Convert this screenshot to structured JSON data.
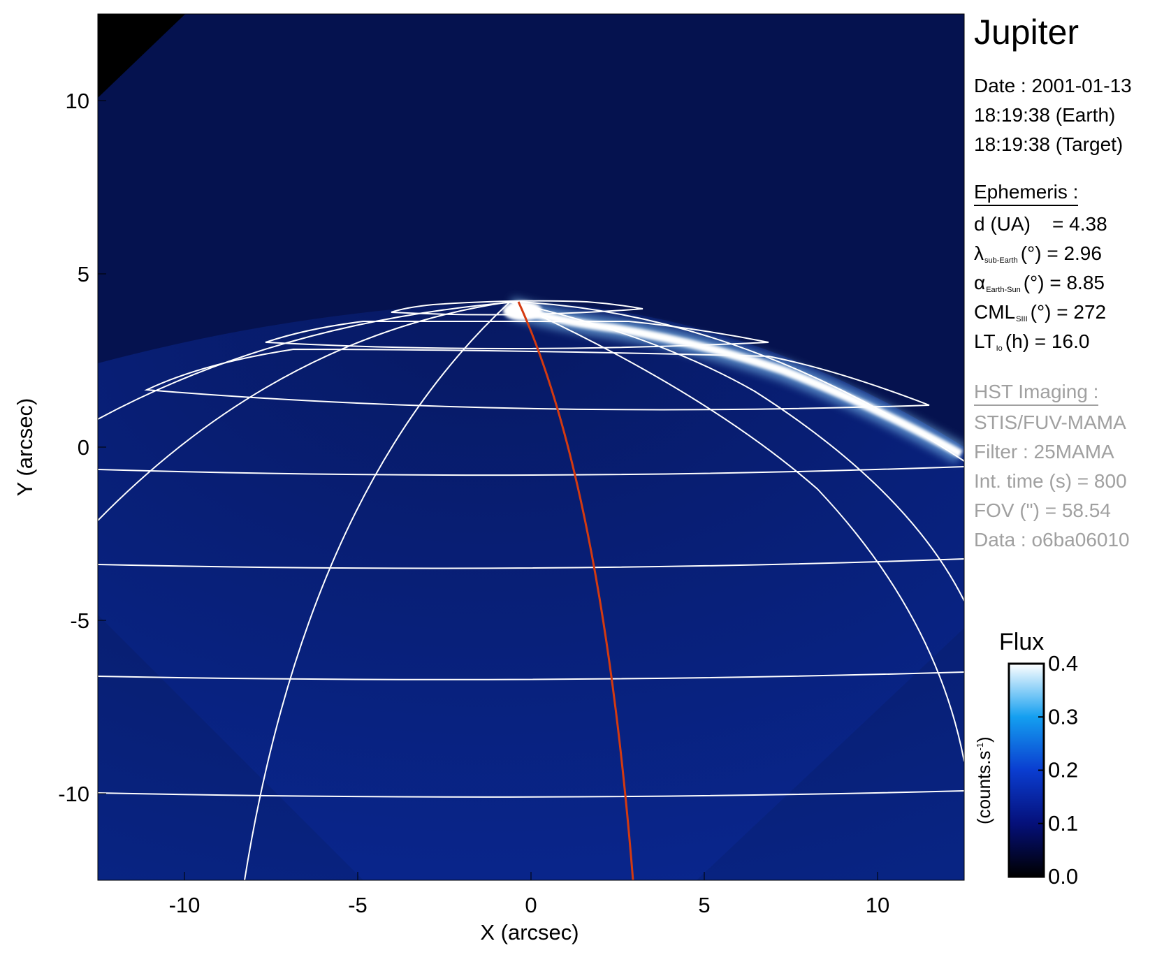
{
  "chart_data": {
    "type": "heatmap",
    "xlabel": "X (arcsec)",
    "ylabel": "Y (arcsec)",
    "xlim": [
      -12.5,
      12.5
    ],
    "ylim": [
      -12.5,
      12.5
    ],
    "x_ticks": [
      "-10",
      "-5",
      "0",
      "5",
      "10"
    ],
    "y_ticks": [
      "10",
      "5",
      "0",
      "-5",
      "-10"
    ],
    "x_tick_values": [
      -10,
      -5,
      0,
      5,
      10
    ],
    "y_tick_values": [
      10,
      5,
      0,
      -5,
      -10
    ],
    "colorbar": {
      "title": "Flux",
      "unit_main": "(counts.s",
      "unit_sup": "-1",
      "unit_end": ")",
      "range": [
        0.0,
        0.4
      ],
      "ticks": [
        "0.0",
        "0.1",
        "0.2",
        "0.3",
        "0.4"
      ],
      "tick_values": [
        0.0,
        0.1,
        0.2,
        0.3,
        0.4
      ],
      "colors": [
        "#000000",
        "#05107a",
        "#0a3dd0",
        "#149ff0",
        "#ffffff"
      ]
    },
    "colors": {
      "background": "#000000",
      "data_region": "#05124f",
      "grid": "#ffffff",
      "meridian": "#d43a10",
      "aurora": "#ffffff"
    }
  },
  "info": {
    "title": "Jupiter",
    "date_line": "Date : 2001-01-13",
    "earth_time": "18:19:38 (Earth)",
    "target_time": "18:19:38 (Target)",
    "ephemeris_header": "Ephemeris :",
    "distance_label": "d (UA)",
    "distance_value": "= 4.38",
    "lambda_symbol": "λ",
    "lambda_sub": "sub-Earth",
    "lambda_value": "(°) = 2.96",
    "alpha_symbol": "α",
    "alpha_sub": "Earth-Sun",
    "alpha_value": "(°) = 8.85",
    "cml_label": "CML",
    "cml_sub": "SIII",
    "cml_value": "(°) = 272",
    "lt_label": "LT",
    "lt_sub": "Io",
    "lt_value": "(h) = 16.0",
    "hst_header": "HST Imaging :",
    "instrument": "STIS/FUV-MAMA",
    "filter": "Filter : 25MAMA",
    "int_time": "Int. time (s) = 800",
    "fov": "FOV (\") = 58.54",
    "data_id": "Data : o6ba06010"
  }
}
